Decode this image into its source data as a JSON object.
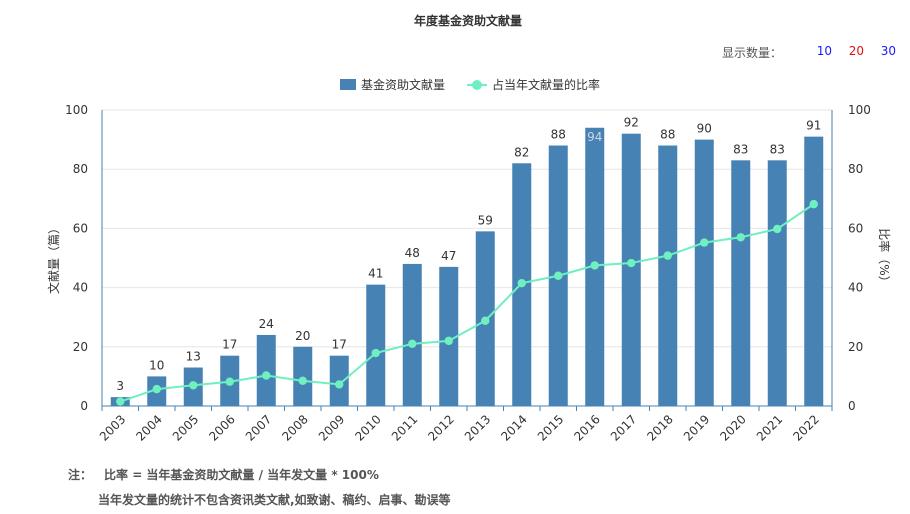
{
  "title": "年度基金资助文献量",
  "display_count": {
    "label": "显示数量：",
    "options": [
      {
        "text": "10",
        "color": "#1a1aff"
      },
      {
        "text": "20",
        "color": "#e01010"
      },
      {
        "text": "30",
        "color": "#1a1aff"
      }
    ]
  },
  "colors": {
    "bar": "#4682b4",
    "line": "#6ff0c0",
    "axis": "#333333",
    "grid": "#e6e6e6",
    "frame": "#4682b4"
  },
  "notes": {
    "prefix": "注：",
    "line1": "比率 = 当年基金资助文献量 / 当年发文量 * 100%",
    "line2": "当年发文量的统计不包含资讯类文献,如致谢、稿约、启事、勘误等"
  },
  "chart_data": {
    "type": "bar",
    "categories": [
      "2003",
      "2004",
      "2005",
      "2006",
      "2007",
      "2008",
      "2009",
      "2010",
      "2011",
      "2012",
      "2013",
      "2014",
      "2015",
      "2016",
      "2017",
      "2018",
      "2019",
      "2020",
      "2021",
      "2022"
    ],
    "series": [
      {
        "name": "基金资助文献量",
        "type": "bar",
        "axis": "left",
        "values": [
          3,
          10,
          13,
          17,
          24,
          20,
          17,
          41,
          48,
          47,
          59,
          82,
          88,
          94,
          92,
          88,
          90,
          83,
          83,
          91
        ]
      },
      {
        "name": "占当年文献量的比率",
        "type": "line",
        "axis": "right",
        "values": [
          1.5,
          5.7,
          7.0,
          8.2,
          10.3,
          8.5,
          7.3,
          17.9,
          21.0,
          22.0,
          28.8,
          41.5,
          44.0,
          47.5,
          48.3,
          50.8,
          55.2,
          57.0,
          59.8,
          68.2
        ]
      }
    ],
    "ylabel": "文献量（篇）",
    "y2label": "比率（%）",
    "ylim": [
      0,
      100
    ],
    "y2lim": [
      0,
      100
    ],
    "yticks": [
      0,
      20,
      40,
      60,
      80,
      100
    ],
    "grid": true,
    "legend": "top-center"
  }
}
